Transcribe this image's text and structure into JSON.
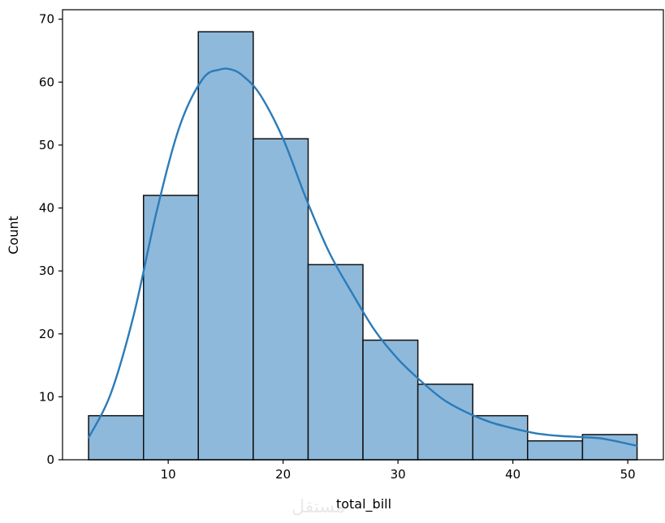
{
  "chart_data": {
    "type": "bar",
    "subtype": "histogram-with-kde",
    "title": "",
    "xlabel": "total_bill",
    "ylabel": "Count",
    "bin_edges": [
      3.07,
      7.85,
      12.62,
      17.4,
      22.18,
      26.95,
      31.73,
      36.51,
      41.28,
      46.06,
      50.81
    ],
    "counts": [
      7,
      42,
      68,
      51,
      31,
      19,
      12,
      7,
      3,
      4
    ],
    "xlim": [
      0.8,
      53.1
    ],
    "ylim": [
      0,
      71.5
    ],
    "xticks": [
      10,
      20,
      30,
      40,
      50
    ],
    "yticks": [
      0,
      10,
      20,
      30,
      40,
      50,
      60,
      70
    ],
    "kde": {
      "x": [
        3.07,
        5.0,
        7.0,
        9.0,
        11.0,
        13.0,
        14.5,
        15.5,
        16.5,
        18.0,
        20.0,
        22.0,
        24.0,
        26.0,
        28.0,
        30.0,
        32.0,
        34.0,
        36.0,
        38.0,
        40.0,
        42.0,
        44.0,
        46.0,
        48.0,
        50.81
      ],
      "y": [
        3.5,
        10.5,
        23,
        39.5,
        53,
        60.5,
        62,
        62,
        61,
        58,
        51,
        41.5,
        33,
        26.5,
        20.5,
        16,
        12.5,
        9.5,
        7.5,
        6,
        5,
        4.2,
        3.8,
        3.6,
        3.3,
        2.2
      ]
    },
    "grid": false,
    "bar_fill": "#8eb9db",
    "bar_edge": "#111111",
    "line_color": "#2b7bb9",
    "watermark": "مستقل"
  }
}
